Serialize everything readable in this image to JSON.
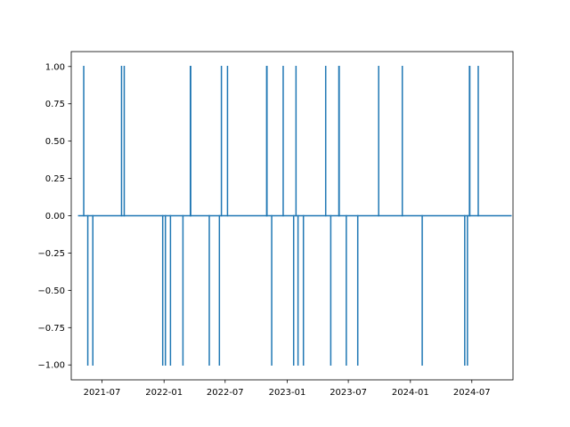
{
  "chart_data": {
    "type": "line",
    "title": "",
    "xlabel": "",
    "ylabel": "",
    "x_range": [
      "2021-04-01",
      "2024-10-31"
    ],
    "ylim": [
      -1.1,
      1.1
    ],
    "x_tick_labels": [
      {
        "date": "2021-07-01",
        "label": "2021-07"
      },
      {
        "date": "2022-01-01",
        "label": "2022-01"
      },
      {
        "date": "2022-07-01",
        "label": "2022-07"
      },
      {
        "date": "2023-01-01",
        "label": "2023-01"
      },
      {
        "date": "2023-07-01",
        "label": "2023-07"
      },
      {
        "date": "2024-01-01",
        "label": "2024-01"
      },
      {
        "date": "2024-07-01",
        "label": "2024-07"
      }
    ],
    "y_tick_labels": [
      {
        "value": 1.0,
        "label": "1.00"
      },
      {
        "value": 0.75,
        "label": "0.75"
      },
      {
        "value": 0.5,
        "label": "0.50"
      },
      {
        "value": 0.25,
        "label": "0.25"
      },
      {
        "value": 0.0,
        "label": "0.00"
      },
      {
        "value": -0.25,
        "label": "−0.25"
      },
      {
        "value": -0.5,
        "label": "−0.50"
      },
      {
        "value": -0.75,
        "label": "−0.75"
      },
      {
        "value": -1.0,
        "label": "−1.00"
      }
    ],
    "series": [
      {
        "color": "#1f77b4",
        "start": "2021-04-23",
        "end": "2024-10-25",
        "spikes": [
          {
            "date": "2021-05-08",
            "value": 1
          },
          {
            "date": "2021-05-20",
            "value": -1
          },
          {
            "date": "2021-06-04",
            "value": -1
          },
          {
            "date": "2021-08-28",
            "value": 1
          },
          {
            "date": "2021-09-05",
            "value": 1
          },
          {
            "date": "2021-12-28",
            "value": -1
          },
          {
            "date": "2022-01-05",
            "value": -1
          },
          {
            "date": "2022-01-20",
            "value": -1
          },
          {
            "date": "2022-02-26",
            "value": -1
          },
          {
            "date": "2022-03-20",
            "value": 1
          },
          {
            "date": "2022-03-21",
            "value": 1
          },
          {
            "date": "2022-05-15",
            "value": -1
          },
          {
            "date": "2022-06-14",
            "value": -1
          },
          {
            "date": "2022-06-20",
            "value": 1
          },
          {
            "date": "2022-07-08",
            "value": 1
          },
          {
            "date": "2022-11-01",
            "value": 1
          },
          {
            "date": "2022-11-02",
            "value": 1
          },
          {
            "date": "2022-11-16",
            "value": -1
          },
          {
            "date": "2022-12-20",
            "value": 1
          },
          {
            "date": "2023-01-20",
            "value": -1
          },
          {
            "date": "2023-01-27",
            "value": 1
          },
          {
            "date": "2023-02-02",
            "value": -1
          },
          {
            "date": "2023-02-18",
            "value": -1
          },
          {
            "date": "2023-04-25",
            "value": 1
          },
          {
            "date": "2023-05-10",
            "value": -1
          },
          {
            "date": "2023-06-03",
            "value": 1
          },
          {
            "date": "2023-06-04",
            "value": 1
          },
          {
            "date": "2023-06-25",
            "value": -1
          },
          {
            "date": "2023-07-29",
            "value": -1
          },
          {
            "date": "2023-09-29",
            "value": 1
          },
          {
            "date": "2023-12-08",
            "value": 1
          },
          {
            "date": "2024-02-05",
            "value": -1
          },
          {
            "date": "2024-06-10",
            "value": -1
          },
          {
            "date": "2024-06-18",
            "value": -1
          },
          {
            "date": "2024-06-24",
            "value": 1
          },
          {
            "date": "2024-06-25",
            "value": 1
          },
          {
            "date": "2024-07-20",
            "value": 1
          }
        ]
      }
    ],
    "grid": false,
    "legend": "none"
  }
}
